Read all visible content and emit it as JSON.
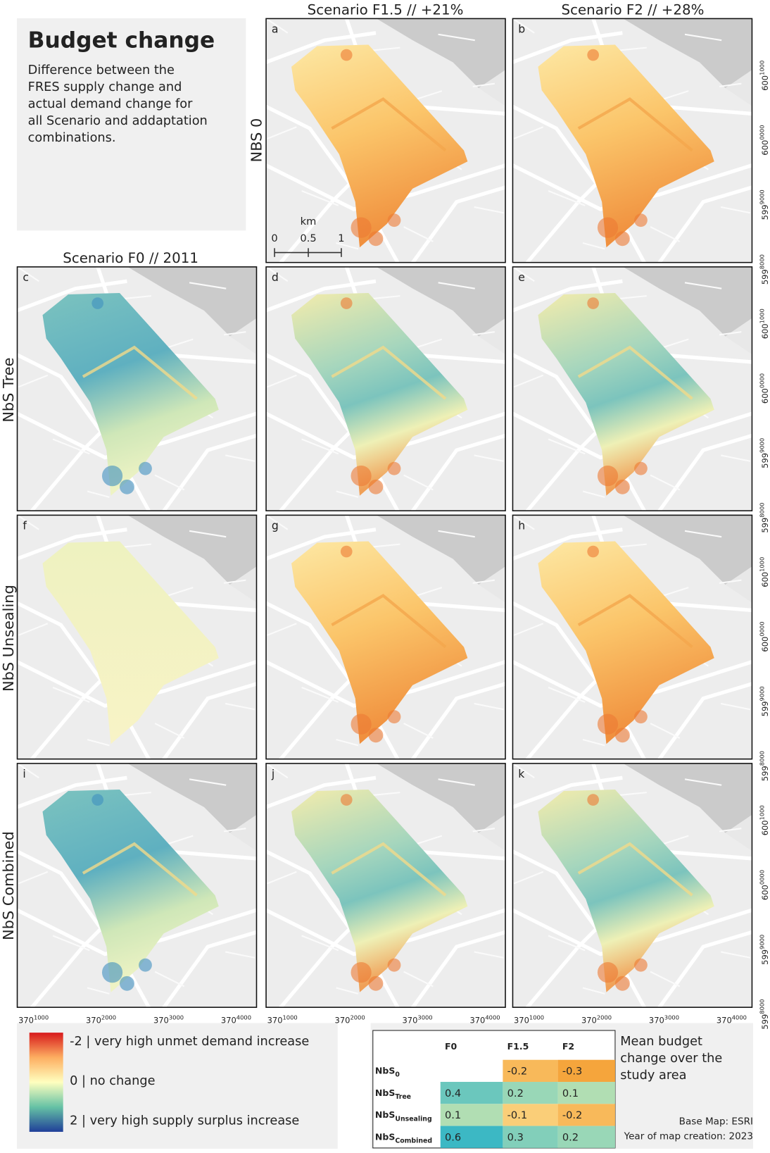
{
  "title": "Budget change",
  "description": [
    "Difference between the",
    "FRES supply change and",
    "actual demand change for",
    "all Scenario and addaptation",
    "combinations."
  ],
  "column_headers": [
    "Scenario F0 // 2011",
    "Scenario F1.5 // +21%",
    "Scenario F2 // +28%"
  ],
  "row_labels": [
    "NBS 0",
    "NbS Tree",
    "NbS Unsealing",
    "NbS Combined"
  ],
  "panels": [
    "a",
    "b",
    "c",
    "d",
    "e",
    "f",
    "g",
    "h",
    "i",
    "j",
    "k"
  ],
  "scale_bar": {
    "unit": "km",
    "ticks": [
      "0",
      "0.5",
      "1"
    ]
  },
  "x_ticks": [
    {
      "base": "370",
      "sup": "1000"
    },
    {
      "base": "370",
      "sup": "2000"
    },
    {
      "base": "370",
      "sup": "3000"
    },
    {
      "base": "370",
      "sup": "4000"
    }
  ],
  "y_ticks": [
    {
      "base": "600",
      "sup": "1000"
    },
    {
      "base": "600",
      "sup": "0000"
    },
    {
      "base": "599",
      "sup": "9000"
    },
    {
      "base": "599",
      "sup": "8000"
    }
  ],
  "legend": [
    "-2 | very high unmet demand increase",
    "0 | no change",
    "2 | very high supply surplus increase"
  ],
  "table": {
    "headers": [
      "F0",
      "F1.5",
      "F2"
    ],
    "rows": [
      {
        "label": "NbS",
        "sub": "0",
        "cells": [
          null,
          -0.2,
          -0.3
        ]
      },
      {
        "label": "NbS",
        "sub": "Tree",
        "cells": [
          0.4,
          0.2,
          0.1
        ]
      },
      {
        "label": "NbS",
        "sub": "Unsealing",
        "cells": [
          0.1,
          -0.1,
          -0.2
        ]
      },
      {
        "label": "NbS",
        "sub": "Combined",
        "cells": [
          0.6,
          0.3,
          0.2
        ]
      }
    ]
  },
  "table_caption": [
    "Mean budget",
    "change over the",
    "study area"
  ],
  "credits": [
    "Base Map: ESRI",
    "Year of map creation: 2023"
  ]
}
